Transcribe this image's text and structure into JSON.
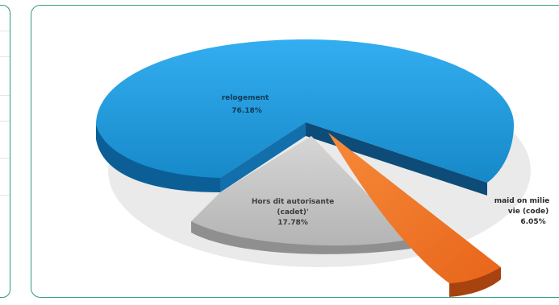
{
  "chart_data": {
    "type": "pie",
    "title": "",
    "slices": [
      {
        "label": "relogement",
        "value_text": "76.18%",
        "value": 76.18,
        "color": "#1a97d6"
      },
      {
        "label_lines": [
          "Hors dit autorisante",
          "(cadet)'"
        ],
        "value_text": "17.78%",
        "value": 17.78,
        "color": "#bcbcbc"
      },
      {
        "label_lines": [
          "maid on milie",
          "vie (code)"
        ],
        "value_text": "6.05%",
        "value": 6.05,
        "color": "#f07322"
      }
    ]
  }
}
